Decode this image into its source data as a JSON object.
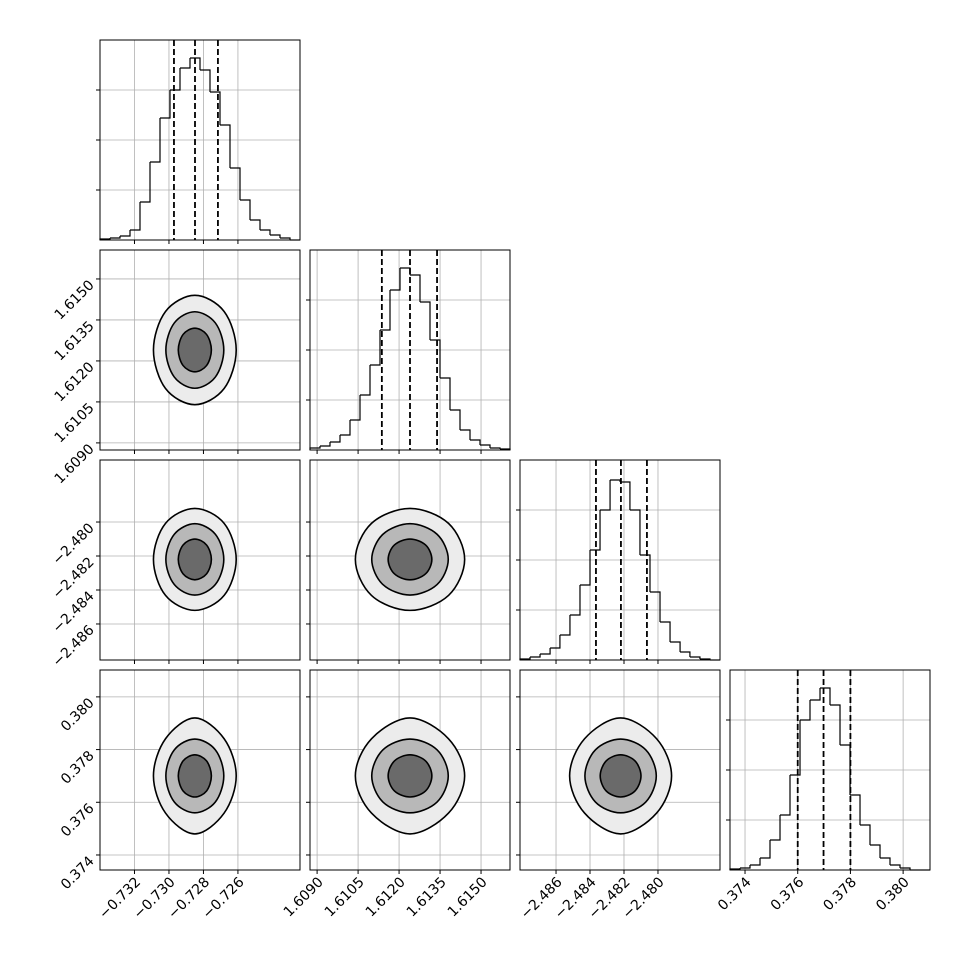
{
  "chart_data": {
    "type": "corner",
    "color": "#000000",
    "grid": true,
    "hist_ylim": [
      0,
      2000
    ],
    "hist_yticks": [
      500,
      1000,
      1500
    ],
    "params": [
      {
        "lim": [
          -0.734,
          -0.7224
        ],
        "ticks": [
          {
            "value": -0.732,
            "label": "−0.732"
          },
          {
            "value": -0.73,
            "label": "−0.730"
          },
          {
            "value": -0.728,
            "label": "−0.728"
          },
          {
            "value": -0.726,
            "label": "−0.726"
          }
        ],
        "bins": [
          -0.734,
          -0.73342,
          -0.73284,
          -0.73226,
          -0.73168,
          -0.7311,
          -0.73052,
          -0.72994,
          -0.72936,
          -0.72878,
          -0.7282,
          -0.72762,
          -0.72704,
          -0.72646,
          -0.72588,
          -0.7253,
          -0.72472,
          -0.72414,
          -0.72356,
          -0.72298,
          -0.7224
        ],
        "counts": [
          10,
          20,
          40,
          100,
          380,
          780,
          1220,
          1500,
          1720,
          1820,
          1700,
          1480,
          1150,
          720,
          400,
          200,
          100,
          50,
          20,
          0
        ],
        "quantiles": [
          -0.72971,
          -0.72849,
          -0.72716
        ]
      },
      {
        "lim": [
          1.60874,
          1.61606
        ],
        "ticks": [
          {
            "value": 1.609,
            "label": "1.6090"
          },
          1.6105,
          {
            "value": 1.612,
            "label": "1.6120"
          },
          1.6135,
          {
            "value": 1.615,
            "label": "1.6150"
          }
        ],
        "bins": [
          1.60874,
          1.609106,
          1.609472,
          1.609838,
          1.610204,
          1.61057,
          1.610936,
          1.611302,
          1.611668,
          1.612034,
          1.6124,
          1.612766,
          1.613132,
          1.613498,
          1.613864,
          1.61423,
          1.614596,
          1.614962,
          1.615328,
          1.615694,
          1.61606
        ],
        "counts": [
          20,
          40,
          80,
          150,
          300,
          550,
          850,
          1200,
          1600,
          1820,
          1750,
          1480,
          1100,
          720,
          400,
          200,
          100,
          50,
          20,
          10
        ],
        "quantiles": [
          1.61137,
          1.6124,
          1.61339
        ]
      },
      {
        "lim": [
          -2.48812,
          -2.47635
        ],
        "ticks": [
          {
            "value": -2.486,
            "label": "−2.486"
          },
          {
            "value": -2.484,
            "label": "−2.484"
          },
          {
            "value": -2.482,
            "label": "−2.482"
          },
          {
            "value": -2.48,
            "label": "−2.480"
          }
        ],
        "bins": [
          -2.48812,
          -2.48753,
          -2.48694,
          -2.48635,
          -2.48577,
          -2.48518,
          -2.48459,
          -2.484,
          -2.48341,
          -2.48282,
          -2.48223,
          -2.48165,
          -2.48106,
          -2.48047,
          -2.47988,
          -2.47929,
          -2.4787,
          -2.47812,
          -2.47753,
          -2.47694,
          -2.47635
        ],
        "counts": [
          10,
          30,
          60,
          120,
          250,
          450,
          750,
          1100,
          1500,
          1800,
          1780,
          1500,
          1050,
          680,
          380,
          180,
          80,
          30,
          10,
          0
        ],
        "quantiles": [
          -2.48365,
          -2.48218,
          -2.48065
        ]
      },
      {
        "lim": [
          0.37343,
          0.38102
        ],
        "ticks": [
          0.374,
          0.376,
          0.378,
          {
            "value": 0.38,
            "label": "0.380"
          }
        ],
        "bins": [
          0.37343,
          0.37381,
          0.374189,
          0.374569,
          0.374948,
          0.375328,
          0.375707,
          0.376087,
          0.376466,
          0.376846,
          0.377225,
          0.377605,
          0.377984,
          0.378364,
          0.378743,
          0.379123,
          0.379502,
          0.379882,
          0.380261,
          0.380641,
          0.38102
        ],
        "counts": [
          10,
          20,
          50,
          120,
          300,
          550,
          950,
          1500,
          1700,
          1820,
          1650,
          1250,
          750,
          450,
          250,
          120,
          50,
          20,
          0,
          0
        ],
        "quantiles": [
          0.376,
          0.37698,
          0.378
        ]
      }
    ],
    "panels": [
      {
        "contours": [
          {
            "x": [
              -0.7261,
              -0.7268,
              -0.7285,
              -0.7302,
              -0.7309,
              -0.7302,
              -0.7285,
              -0.7268
            ],
            "y": [
              1.6124,
              1.61381,
              1.6144,
              1.61381,
              1.6124,
              1.61099,
              1.6104,
              1.61099
            ]
          },
          {
            "x": [
              -0.72682,
              -0.72731,
              -0.7285,
              -0.72969,
              -0.73018,
              -0.72969,
              -0.7285,
              -0.72731
            ],
            "y": [
              1.6124,
              1.61339,
              1.6138,
              1.61339,
              1.6124,
              1.61141,
              1.611,
              1.61141
            ]
          },
          {
            "x": [
              -0.72754,
              -0.72782,
              -0.7285,
              -0.72918,
              -0.72946,
              -0.72918,
              -0.7285,
              -0.72782
            ],
            "y": [
              1.6124,
              1.61297,
              1.6132,
              1.61297,
              1.6124,
              1.61183,
              1.6116,
              1.61183
            ]
          }
        ]
      },
      {
        "contours": [
          {
            "x": [
              -0.7261,
              -0.7268,
              -0.7285,
              -0.7302,
              -0.7309,
              -0.7302,
              -0.7285,
              -0.7268
            ],
            "y": [
              -2.4822,
              -2.48008,
              -2.4792,
              -2.48008,
              -2.4822,
              -2.48432,
              -2.4852,
              -2.48432
            ]
          },
          {
            "x": [
              -0.72682,
              -0.72731,
              -0.7285,
              -0.72969,
              -0.73018,
              -0.72969,
              -0.7285,
              -0.72731
            ],
            "y": [
              -2.4822,
              -2.48072,
              -2.4801,
              -2.48072,
              -2.4822,
              -2.48368,
              -2.4843,
              -2.48368
            ]
          },
          {
            "x": [
              -0.72754,
              -0.72782,
              -0.7285,
              -0.72918,
              -0.72946,
              -0.72918,
              -0.7285,
              -0.72782
            ],
            "y": [
              -2.4822,
              -2.48135,
              -2.481,
              -2.48135,
              -2.4822,
              -2.48305,
              -2.4834,
              -2.48305
            ]
          }
        ]
      },
      {
        "contours": [
          {
            "x": [
              1.6144,
              1.61381,
              1.6124,
              1.61099,
              1.6104,
              1.61099,
              1.6124,
              1.61381
            ],
            "y": [
              -2.4822,
              -2.48008,
              -2.4792,
              -2.48008,
              -2.4822,
              -2.48432,
              -2.4852,
              -2.48432
            ]
          },
          {
            "x": [
              1.6138,
              1.61339,
              1.6124,
              1.61141,
              1.611,
              1.61141,
              1.6124,
              1.61339
            ],
            "y": [
              -2.4822,
              -2.48072,
              -2.4801,
              -2.48072,
              -2.4822,
              -2.48368,
              -2.4843,
              -2.48368
            ]
          },
          {
            "x": [
              1.6132,
              1.61297,
              1.6124,
              1.61183,
              1.6116,
              1.61183,
              1.6124,
              1.61297
            ],
            "y": [
              -2.4822,
              -2.48135,
              -2.481,
              -2.48135,
              -2.4822,
              -2.48305,
              -2.4834,
              -2.48305
            ]
          }
        ]
      },
      {
        "contours": [
          {
            "x": [
              -0.7261,
              -0.7268,
              -0.7285,
              -0.7302,
              -0.7309,
              -0.7302,
              -0.7285,
              -0.7268
            ],
            "y": [
              0.377,
              0.37841,
              0.3792,
              0.37841,
              0.377,
              0.37559,
              0.3748,
              0.37559
            ]
          },
          {
            "x": [
              -0.72682,
              -0.72731,
              -0.7285,
              -0.72969,
              -0.73018,
              -0.72969,
              -0.7285,
              -0.72731
            ],
            "y": [
              0.377,
              0.37799,
              0.3784,
              0.37799,
              0.377,
              0.37601,
              0.3756,
              0.37601
            ]
          },
          {
            "x": [
              -0.72754,
              -0.72782,
              -0.7285,
              -0.72918,
              -0.72946,
              -0.72918,
              -0.7285,
              -0.72782
            ],
            "y": [
              0.377,
              0.37757,
              0.3778,
              0.37757,
              0.377,
              0.37643,
              0.3762,
              0.37643
            ]
          }
        ]
      },
      {
        "contours": [
          {
            "x": [
              1.6144,
              1.61381,
              1.6124,
              1.61099,
              1.6104,
              1.61099,
              1.6124,
              1.61381
            ],
            "y": [
              0.377,
              0.37841,
              0.3792,
              0.37841,
              0.377,
              0.37559,
              0.3748,
              0.37559
            ]
          },
          {
            "x": [
              1.6138,
              1.61339,
              1.6124,
              1.61141,
              1.611,
              1.61141,
              1.6124,
              1.61339
            ],
            "y": [
              0.377,
              0.37799,
              0.3784,
              0.37799,
              0.377,
              0.37601,
              0.3756,
              0.37601
            ]
          },
          {
            "x": [
              1.6132,
              1.61297,
              1.6124,
              1.61183,
              1.6116,
              1.61183,
              1.6124,
              1.61297
            ],
            "y": [
              0.377,
              0.37757,
              0.3778,
              0.37757,
              0.377,
              0.37643,
              0.3762,
              0.37643
            ]
          }
        ]
      },
      {
        "contours": [
          {
            "x": [
              -2.4792,
              -2.48008,
              -2.4822,
              -2.48432,
              -2.4852,
              -2.48432,
              -2.4822,
              -2.48008
            ],
            "y": [
              0.377,
              0.37841,
              0.3792,
              0.37841,
              0.377,
              0.37559,
              0.3748,
              0.37559
            ]
          },
          {
            "x": [
              -2.4801,
              -2.48072,
              -2.4822,
              -2.48368,
              -2.4843,
              -2.48368,
              -2.4822,
              -2.48072
            ],
            "y": [
              0.377,
              0.37799,
              0.3784,
              0.37799,
              0.377,
              0.37601,
              0.3756,
              0.37601
            ]
          },
          {
            "x": [
              -2.481,
              -2.48135,
              -2.4822,
              -2.48305,
              -2.4834,
              -2.48305,
              -2.4822,
              -2.48135
            ],
            "y": [
              0.377,
              0.37757,
              0.3778,
              0.37757,
              0.377,
              0.37643,
              0.3762,
              0.37643
            ]
          }
        ]
      }
    ]
  }
}
